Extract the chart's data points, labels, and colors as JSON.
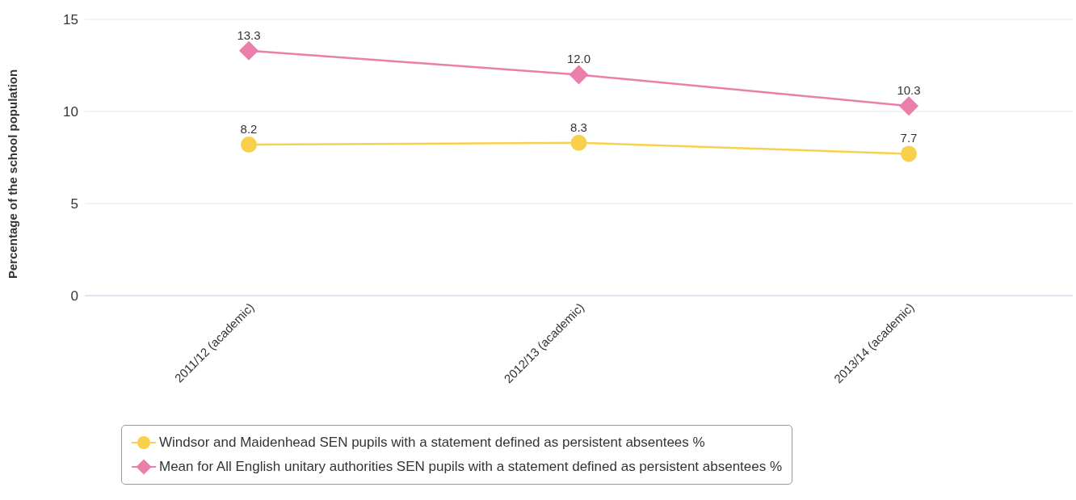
{
  "chart_data": {
    "type": "line",
    "ylabel": "Percentage of the school population",
    "categories": [
      "2011/12 (academic)",
      "2012/13 (academic)",
      "2013/14 (academic)"
    ],
    "series": [
      {
        "name": "Windsor and Maidenhead SEN pupils with a statement defined as persistent absentees %",
        "color": "#f9d04b",
        "marker": "circle",
        "values": [
          8.2,
          8.3,
          7.7
        ],
        "value_labels": [
          "8.2",
          "8.3",
          "7.7"
        ]
      },
      {
        "name": "Mean for All English unitary authorities SEN pupils with a statement defined as persistent absentees %",
        "color": "#ea7fac",
        "marker": "diamond",
        "values": [
          13.3,
          12.0,
          10.3
        ],
        "value_labels": [
          "13.3",
          "12.0",
          "10.3"
        ]
      }
    ],
    "ylim": [
      0,
      15
    ],
    "yticks": [
      0,
      5,
      10,
      15
    ],
    "grid": "y",
    "legend": "bottom"
  }
}
